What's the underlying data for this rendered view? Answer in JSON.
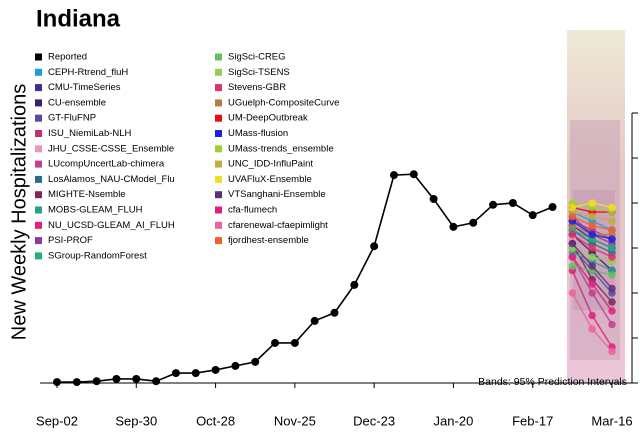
{
  "chart_data": {
    "type": "line",
    "title": "Indiana",
    "y_label": "New Weekly Hospitalizations",
    "annotation": "Bands: 95% Prediction Intervals",
    "categories": [
      "Sep-02",
      null,
      null,
      null,
      "Sep-30",
      null,
      null,
      null,
      "Oct-28",
      null,
      null,
      null,
      "Nov-25",
      null,
      null,
      null,
      "Dec-23",
      null,
      null,
      null,
      "Jan-20",
      null,
      null,
      null,
      "Feb-17",
      null,
      null,
      null,
      "Mar-16"
    ],
    "ylim": [
      0,
      600
    ],
    "yticks": [
      0,
      100,
      200,
      300,
      400,
      500,
      600
    ],
    "series": [
      {
        "name": "Reported",
        "color": "#000000",
        "values": [
          2,
          2,
          4,
          9,
          9,
          4,
          22,
          22,
          29,
          38,
          47,
          89,
          89,
          138,
          156,
          218,
          304,
          462,
          464,
          409,
          347,
          356,
          396,
          400,
          373,
          391,
          null,
          null,
          null
        ]
      },
      {
        "name": "CEPH-Rtrend_fluH",
        "color": "#1f9fd8",
        "values": [
          null,
          null,
          null,
          null,
          null,
          null,
          null,
          null,
          null,
          null,
          null,
          null,
          null,
          null,
          null,
          null,
          null,
          null,
          null,
          null,
          null,
          null,
          null,
          null,
          null,
          null,
          380,
          360,
          340
        ]
      },
      {
        "name": "CMU-TimeSeries",
        "color": "#3b2f8f",
        "values": [
          null,
          null,
          null,
          null,
          null,
          null,
          null,
          null,
          null,
          null,
          null,
          null,
          null,
          null,
          null,
          null,
          null,
          null,
          null,
          null,
          null,
          null,
          null,
          null,
          null,
          null,
          350,
          320,
          300
        ]
      },
      {
        "name": "CU-ensemble",
        "color": "#3a1f6b",
        "values": [
          null,
          null,
          null,
          null,
          null,
          null,
          null,
          null,
          null,
          null,
          null,
          null,
          null,
          null,
          null,
          null,
          null,
          null,
          null,
          null,
          null,
          null,
          null,
          null,
          null,
          null,
          330,
          290,
          250
        ]
      },
      {
        "name": "GT-FluFNP",
        "color": "#5a4aa0",
        "values": [
          null,
          null,
          null,
          null,
          null,
          null,
          null,
          null,
          null,
          null,
          null,
          null,
          null,
          null,
          null,
          null,
          null,
          null,
          null,
          null,
          null,
          null,
          null,
          null,
          null,
          null,
          300,
          250,
          200
        ]
      },
      {
        "name": "ISU_NiemiLab-NLH",
        "color": "#c0307a",
        "values": [
          null,
          null,
          null,
          null,
          null,
          null,
          null,
          null,
          null,
          null,
          null,
          null,
          null,
          null,
          null,
          null,
          null,
          null,
          null,
          null,
          null,
          null,
          null,
          null,
          null,
          null,
          360,
          340,
          320
        ]
      },
      {
        "name": "JHU_CSSE-CSSE_Ensemble",
        "color": "#e898b0",
        "values": [
          null,
          null,
          null,
          null,
          null,
          null,
          null,
          null,
          null,
          null,
          null,
          null,
          null,
          null,
          null,
          null,
          null,
          null,
          null,
          null,
          null,
          null,
          null,
          null,
          null,
          null,
          320,
          260,
          220
        ]
      },
      {
        "name": "LUcompUncertLab-chimera",
        "color": "#c04090",
        "values": [
          null,
          null,
          null,
          null,
          null,
          null,
          null,
          null,
          null,
          null,
          null,
          null,
          null,
          null,
          null,
          null,
          null,
          null,
          null,
          null,
          null,
          null,
          null,
          null,
          null,
          null,
          280,
          200,
          130
        ]
      },
      {
        "name": "LosAlamos_NAU-CModel_Flu",
        "color": "#2a6a8a",
        "values": [
          null,
          null,
          null,
          null,
          null,
          null,
          null,
          null,
          null,
          null,
          null,
          null,
          null,
          null,
          null,
          null,
          null,
          null,
          null,
          null,
          null,
          null,
          null,
          null,
          null,
          null,
          340,
          310,
          290
        ]
      },
      {
        "name": "MIGHTE-Nsemble",
        "color": "#7a2a5a",
        "values": [
          null,
          null,
          null,
          null,
          null,
          null,
          null,
          null,
          null,
          null,
          null,
          null,
          null,
          null,
          null,
          null,
          null,
          null,
          null,
          null,
          null,
          null,
          null,
          null,
          null,
          null,
          310,
          230,
          180
        ]
      },
      {
        "name": "MOBS-GLEAM_FLUH",
        "color": "#2aa090",
        "values": [
          null,
          null,
          null,
          null,
          null,
          null,
          null,
          null,
          null,
          null,
          null,
          null,
          null,
          null,
          null,
          null,
          null,
          null,
          null,
          null,
          null,
          null,
          null,
          null,
          null,
          null,
          290,
          270,
          250
        ]
      },
      {
        "name": "NU_UCSD-GLEAM_AI_FLUH",
        "color": "#e0207a",
        "values": [
          null,
          null,
          null,
          null,
          null,
          null,
          null,
          null,
          null,
          null,
          null,
          null,
          null,
          null,
          null,
          null,
          null,
          null,
          null,
          null,
          null,
          null,
          null,
          null,
          null,
          null,
          250,
          150,
          80
        ]
      },
      {
        "name": "PSI-PROF",
        "color": "#8a3aa0",
        "values": [
          null,
          null,
          null,
          null,
          null,
          null,
          null,
          null,
          null,
          null,
          null,
          null,
          null,
          null,
          null,
          null,
          null,
          null,
          null,
          null,
          null,
          null,
          null,
          null,
          null,
          null,
          370,
          330,
          310
        ]
      },
      {
        "name": "SGroup-RandomForest",
        "color": "#20b080",
        "values": [
          null,
          null,
          null,
          null,
          null,
          null,
          null,
          null,
          null,
          null,
          null,
          null,
          null,
          null,
          null,
          null,
          null,
          null,
          null,
          null,
          null,
          null,
          null,
          null,
          null,
          null,
          340,
          320,
          300
        ]
      },
      {
        "name": "SigSci-CREG",
        "color": "#60c060",
        "values": [
          null,
          null,
          null,
          null,
          null,
          null,
          null,
          null,
          null,
          null,
          null,
          null,
          null,
          null,
          null,
          null,
          null,
          null,
          null,
          null,
          null,
          null,
          null,
          null,
          null,
          null,
          260,
          250,
          240
        ]
      },
      {
        "name": "SigSci-TSENS",
        "color": "#90d050",
        "values": [
          null,
          null,
          null,
          null,
          null,
          null,
          null,
          null,
          null,
          null,
          null,
          null,
          null,
          null,
          null,
          null,
          null,
          null,
          null,
          null,
          null,
          null,
          null,
          null,
          null,
          null,
          300,
          280,
          270
        ]
      },
      {
        "name": "Stevens-GBR",
        "color": "#e0306a",
        "values": [
          null,
          null,
          null,
          null,
          null,
          null,
          null,
          null,
          null,
          null,
          null,
          null,
          null,
          null,
          null,
          null,
          null,
          null,
          null,
          null,
          null,
          null,
          null,
          null,
          null,
          null,
          330,
          300,
          280
        ]
      },
      {
        "name": "UGuelph-CompositeCurve",
        "color": "#b08040",
        "values": [
          null,
          null,
          null,
          null,
          null,
          null,
          null,
          null,
          null,
          null,
          null,
          null,
          null,
          null,
          null,
          null,
          null,
          null,
          null,
          null,
          null,
          null,
          null,
          null,
          null,
          null,
          350,
          330,
          330
        ]
      },
      {
        "name": "UM-DeepOutbreak",
        "color": "#e01010",
        "values": [
          null,
          null,
          null,
          null,
          null,
          null,
          null,
          null,
          null,
          null,
          null,
          null,
          null,
          null,
          null,
          null,
          null,
          null,
          null,
          null,
          null,
          null,
          null,
          null,
          null,
          null,
          390,
          380,
          380
        ]
      },
      {
        "name": "UMass-flusion",
        "color": "#2020e0",
        "values": [
          null,
          null,
          null,
          null,
          null,
          null,
          null,
          null,
          null,
          null,
          null,
          null,
          null,
          null,
          null,
          null,
          null,
          null,
          null,
          null,
          null,
          null,
          null,
          null,
          null,
          null,
          360,
          330,
          320
        ]
      },
      {
        "name": "UMass-trends_ensemble",
        "color": "#a0d030",
        "values": [
          null,
          null,
          null,
          null,
          null,
          null,
          null,
          null,
          null,
          null,
          null,
          null,
          null,
          null,
          null,
          null,
          null,
          null,
          null,
          null,
          null,
          null,
          null,
          null,
          null,
          null,
          400,
          390,
          380
        ]
      },
      {
        "name": "UNC_IDD-InfluPaint",
        "color": "#c0b040",
        "values": [
          null,
          null,
          null,
          null,
          null,
          null,
          null,
          null,
          null,
          null,
          null,
          null,
          null,
          null,
          null,
          null,
          null,
          null,
          null,
          null,
          null,
          null,
          null,
          null,
          null,
          null,
          380,
          370,
          360
        ]
      },
      {
        "name": "UVAFluX-Ensemble",
        "color": "#f0e020",
        "values": [
          null,
          null,
          null,
          null,
          null,
          null,
          null,
          null,
          null,
          null,
          null,
          null,
          null,
          null,
          null,
          null,
          null,
          null,
          null,
          null,
          null,
          null,
          null,
          null,
          null,
          null,
          390,
          400,
          390
        ]
      },
      {
        "name": "VTSanghani-Ensemble",
        "color": "#5a3080",
        "values": [
          null,
          null,
          null,
          null,
          null,
          null,
          null,
          null,
          null,
          null,
          null,
          null,
          null,
          null,
          null,
          null,
          null,
          null,
          null,
          null,
          null,
          null,
          null,
          null,
          null,
          null,
          310,
          260,
          210
        ]
      },
      {
        "name": "cfa-flumech",
        "color": "#e02080",
        "values": [
          null,
          null,
          null,
          null,
          null,
          null,
          null,
          null,
          null,
          null,
          null,
          null,
          null,
          null,
          null,
          null,
          null,
          null,
          null,
          null,
          null,
          null,
          null,
          null,
          null,
          null,
          280,
          220,
          160
        ]
      },
      {
        "name": "cfarenewal-cfaepimlight",
        "color": "#f060a0",
        "values": [
          null,
          null,
          null,
          null,
          null,
          null,
          null,
          null,
          null,
          null,
          null,
          null,
          null,
          null,
          null,
          null,
          null,
          null,
          null,
          null,
          null,
          null,
          null,
          null,
          null,
          null,
          200,
          120,
          70
        ]
      },
      {
        "name": "fjordhest-ensemble",
        "color": "#f06030",
        "values": [
          null,
          null,
          null,
          null,
          null,
          null,
          null,
          null,
          null,
          null,
          null,
          null,
          null,
          null,
          null,
          null,
          null,
          null,
          null,
          null,
          null,
          null,
          null,
          null,
          null,
          null,
          370,
          350,
          340
        ]
      }
    ]
  }
}
